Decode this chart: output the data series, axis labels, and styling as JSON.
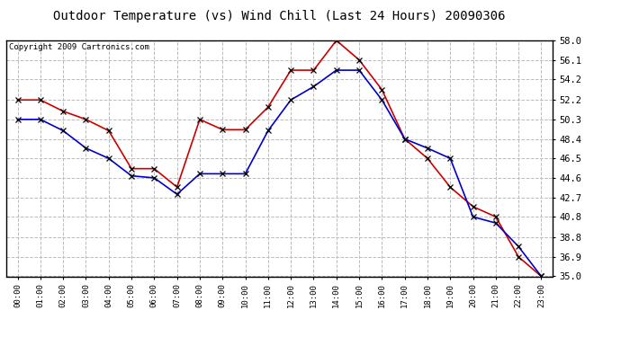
{
  "title": "Outdoor Temperature (vs) Wind Chill (Last 24 Hours) 20090306",
  "copyright": "Copyright 2009 Cartronics.com",
  "hours": [
    0,
    1,
    2,
    3,
    4,
    5,
    6,
    7,
    8,
    9,
    10,
    11,
    12,
    13,
    14,
    15,
    16,
    17,
    18,
    19,
    20,
    21,
    22,
    23
  ],
  "x_labels": [
    "00:00",
    "01:00",
    "02:00",
    "03:00",
    "04:00",
    "05:00",
    "06:00",
    "07:00",
    "08:00",
    "09:00",
    "10:00",
    "11:00",
    "12:00",
    "13:00",
    "14:00",
    "15:00",
    "16:00",
    "17:00",
    "18:00",
    "19:00",
    "20:00",
    "21:00",
    "22:00",
    "23:00"
  ],
  "temp": [
    52.2,
    52.2,
    51.1,
    50.3,
    49.2,
    45.5,
    45.5,
    43.7,
    50.3,
    49.3,
    49.3,
    51.5,
    55.1,
    55.1,
    58.0,
    56.1,
    53.2,
    48.4,
    46.5,
    43.7,
    41.8,
    40.8,
    36.9,
    35.0
  ],
  "windchill": [
    50.3,
    50.3,
    49.2,
    47.5,
    46.5,
    44.8,
    44.6,
    43.0,
    45.0,
    45.0,
    45.0,
    49.2,
    52.2,
    53.5,
    55.1,
    55.1,
    52.2,
    48.4,
    47.5,
    46.5,
    40.8,
    40.2,
    37.9,
    35.0
  ],
  "temp_color": "#cc0000",
  "windchill_color": "#0000cc",
  "bg_color": "#ffffff",
  "plot_bg_color": "#ffffff",
  "grid_color": "#bbbbbb",
  "ylim_min": 35.0,
  "ylim_max": 58.0,
  "yticks": [
    35.0,
    36.9,
    38.8,
    40.8,
    42.7,
    44.6,
    46.5,
    48.4,
    50.3,
    52.2,
    54.2,
    56.1,
    58.0
  ],
  "title_fontsize": 10,
  "copyright_fontsize": 6.5
}
